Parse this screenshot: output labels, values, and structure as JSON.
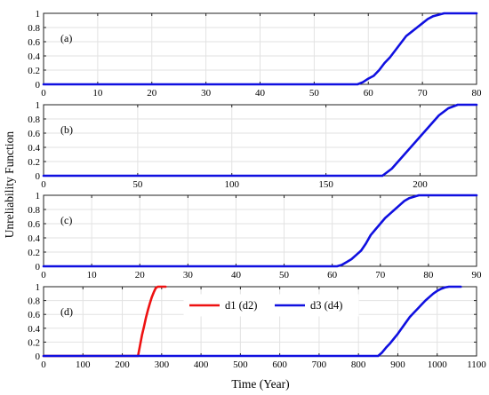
{
  "figure": {
    "xlabel": "Time (Year)",
    "ylabel": "Unreliability Function"
  },
  "chart_data": [
    {
      "type": "line",
      "panel_label": "(a)",
      "xlim": [
        0,
        80
      ],
      "ylim": [
        0,
        1
      ],
      "xticks": [
        0,
        10,
        20,
        30,
        40,
        50,
        60,
        70,
        80
      ],
      "yticks": [
        0,
        0.2,
        0.4,
        0.6,
        0.8,
        1
      ],
      "grid": true,
      "series": [
        {
          "color": "#1010e0",
          "x": [
            0,
            58,
            59,
            60,
            61,
            62,
            63,
            64,
            65,
            66,
            67,
            68,
            69,
            70,
            71,
            72,
            73,
            74,
            75,
            76,
            80
          ],
          "y": [
            0,
            0,
            0.03,
            0.08,
            0.12,
            0.2,
            0.3,
            0.38,
            0.48,
            0.58,
            0.68,
            0.74,
            0.8,
            0.86,
            0.92,
            0.96,
            0.98,
            1,
            1,
            1,
            1
          ]
        }
      ]
    },
    {
      "type": "line",
      "panel_label": "(b)",
      "xlim": [
        0,
        230
      ],
      "ylim": [
        0,
        1
      ],
      "xticks": [
        0,
        50,
        100,
        150,
        200
      ],
      "yticks": [
        0,
        0.2,
        0.4,
        0.6,
        0.8,
        1
      ],
      "grid": true,
      "series": [
        {
          "color": "#1010e0",
          "x": [
            0,
            180,
            185,
            190,
            195,
            200,
            205,
            210,
            215,
            220,
            230
          ],
          "y": [
            0,
            0,
            0.1,
            0.25,
            0.4,
            0.55,
            0.7,
            0.85,
            0.95,
            1,
            1
          ]
        }
      ]
    },
    {
      "type": "line",
      "panel_label": "(c)",
      "xlim": [
        0,
        90
      ],
      "ylim": [
        0,
        1
      ],
      "xticks": [
        0,
        10,
        20,
        30,
        40,
        50,
        60,
        70,
        80,
        90
      ],
      "yticks": [
        0,
        0.2,
        0.4,
        0.6,
        0.8,
        1
      ],
      "grid": true,
      "series": [
        {
          "color": "#1010e0",
          "x": [
            0,
            61,
            62,
            63,
            64,
            65,
            66,
            67,
            68,
            69,
            70,
            71,
            72,
            73,
            74,
            75,
            76,
            77,
            78,
            79,
            80,
            90
          ],
          "y": [
            0,
            0,
            0.02,
            0.06,
            0.1,
            0.16,
            0.22,
            0.32,
            0.44,
            0.52,
            0.6,
            0.68,
            0.74,
            0.8,
            0.86,
            0.92,
            0.96,
            0.98,
            1,
            1,
            1,
            1
          ]
        }
      ]
    },
    {
      "type": "line",
      "panel_label": "(d)",
      "xlim": [
        0,
        1100
      ],
      "ylim": [
        0,
        1
      ],
      "xticks": [
        0,
        100,
        200,
        300,
        400,
        500,
        600,
        700,
        800,
        900,
        1000,
        1100
      ],
      "yticks": [
        0,
        0.2,
        0.4,
        0.6,
        0.8,
        1
      ],
      "grid": true,
      "legend_position": "top-center",
      "series": [
        {
          "name": "d1 (d2)",
          "color": "#ee1111",
          "x": [
            0,
            240,
            245,
            250,
            255,
            260,
            265,
            270,
            275,
            280,
            285,
            290,
            295,
            300,
            310
          ],
          "y": [
            0,
            0,
            0.15,
            0.3,
            0.42,
            0.55,
            0.66,
            0.76,
            0.85,
            0.92,
            0.98,
            1,
            1,
            1,
            1
          ]
        },
        {
          "name": "d3 (d4)",
          "color": "#1010e0",
          "x": [
            0,
            850,
            860,
            870,
            880,
            890,
            900,
            910,
            920,
            930,
            940,
            950,
            960,
            970,
            980,
            990,
            1000,
            1010,
            1020,
            1030,
            1040,
            1050,
            1060
          ],
          "y": [
            0,
            0,
            0.05,
            0.12,
            0.18,
            0.25,
            0.32,
            0.4,
            0.48,
            0.56,
            0.62,
            0.68,
            0.74,
            0.8,
            0.85,
            0.9,
            0.94,
            0.97,
            0.99,
            1,
            1,
            1,
            1
          ]
        }
      ]
    }
  ]
}
